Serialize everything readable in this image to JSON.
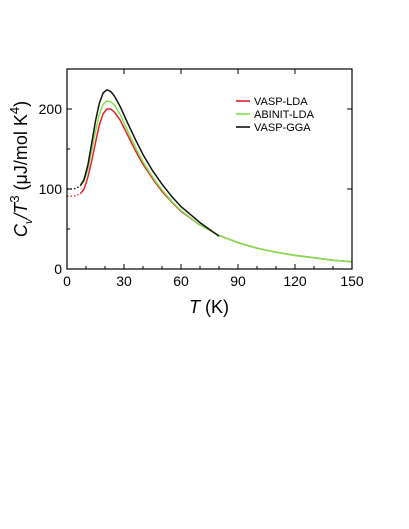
{
  "chart_data": {
    "type": "line",
    "xlabel": "T (K)",
    "xlabel_parts": {
      "symbol": "T",
      "unit": " (K)"
    },
    "ylabel_parts": {
      "c": "C",
      "v": "v",
      "slash_t": "/T",
      "exp": "3",
      "unit": " (μJ/mol K",
      "unit_exp": "4",
      "close": ")"
    },
    "xlim": [
      0,
      150
    ],
    "ylim": [
      0,
      250
    ],
    "xticks": [
      0,
      30,
      60,
      90,
      120,
      150
    ],
    "yticks": [
      0,
      100,
      200
    ],
    "xtick_labels": [
      "0",
      "30",
      "60",
      "90",
      "120",
      "150"
    ],
    "ytick_labels": [
      "0",
      "100",
      "200"
    ],
    "grid": false,
    "legend_position": "top-right",
    "series": [
      {
        "name": "VASP-LDA",
        "color": "#e8202a",
        "dotted_until": 7,
        "points": [
          [
            0,
            91
          ],
          [
            3,
            91
          ],
          [
            5,
            92
          ],
          [
            7,
            94
          ],
          [
            9,
            100
          ],
          [
            11,
            115
          ],
          [
            13,
            135
          ],
          [
            15,
            158
          ],
          [
            17,
            180
          ],
          [
            19,
            194
          ],
          [
            21,
            200
          ],
          [
            23,
            200
          ],
          [
            25,
            196
          ],
          [
            28,
            186
          ],
          [
            32,
            167
          ],
          [
            36,
            148
          ],
          [
            40,
            131
          ],
          [
            45,
            113
          ],
          [
            50,
            97
          ],
          [
            55,
            84
          ],
          [
            60,
            72
          ],
          [
            70,
            55
          ],
          [
            80,
            42
          ],
          [
            90,
            33
          ],
          [
            100,
            26
          ],
          [
            110,
            21
          ],
          [
            120,
            17
          ],
          [
            130,
            14
          ],
          [
            140,
            11
          ],
          [
            150,
            9
          ]
        ]
      },
      {
        "name": "ABINIT-LDA",
        "color": "#7de34a",
        "dotted_until": 7,
        "points": [
          [
            0,
            100
          ],
          [
            3,
            100
          ],
          [
            5,
            101
          ],
          [
            7,
            104
          ],
          [
            9,
            110
          ],
          [
            11,
            125
          ],
          [
            13,
            148
          ],
          [
            15,
            172
          ],
          [
            17,
            193
          ],
          [
            19,
            206
          ],
          [
            21,
            210
          ],
          [
            23,
            209
          ],
          [
            25,
            205
          ],
          [
            28,
            193
          ],
          [
            32,
            172
          ],
          [
            36,
            152
          ],
          [
            40,
            134
          ],
          [
            45,
            115
          ],
          [
            50,
            99
          ],
          [
            55,
            85
          ],
          [
            60,
            73
          ],
          [
            70,
            55
          ],
          [
            80,
            42
          ],
          [
            90,
            33
          ],
          [
            100,
            26
          ],
          [
            110,
            21
          ],
          [
            120,
            17
          ],
          [
            130,
            14
          ],
          [
            140,
            11
          ],
          [
            150,
            9
          ]
        ]
      },
      {
        "name": "VASP-GGA",
        "color": "#111111",
        "dotted_until": 7,
        "points": [
          [
            0,
            100
          ],
          [
            3,
            100
          ],
          [
            5,
            101
          ],
          [
            7,
            104
          ],
          [
            9,
            112
          ],
          [
            11,
            130
          ],
          [
            13,
            157
          ],
          [
            15,
            185
          ],
          [
            17,
            207
          ],
          [
            19,
            220
          ],
          [
            21,
            224
          ],
          [
            23,
            222
          ],
          [
            25,
            216
          ],
          [
            28,
            203
          ],
          [
            32,
            182
          ],
          [
            36,
            162
          ],
          [
            40,
            143
          ],
          [
            45,
            123
          ],
          [
            50,
            106
          ],
          [
            55,
            91
          ],
          [
            60,
            78
          ],
          [
            70,
            58
          ],
          [
            80,
            41
          ]
        ]
      }
    ]
  }
}
